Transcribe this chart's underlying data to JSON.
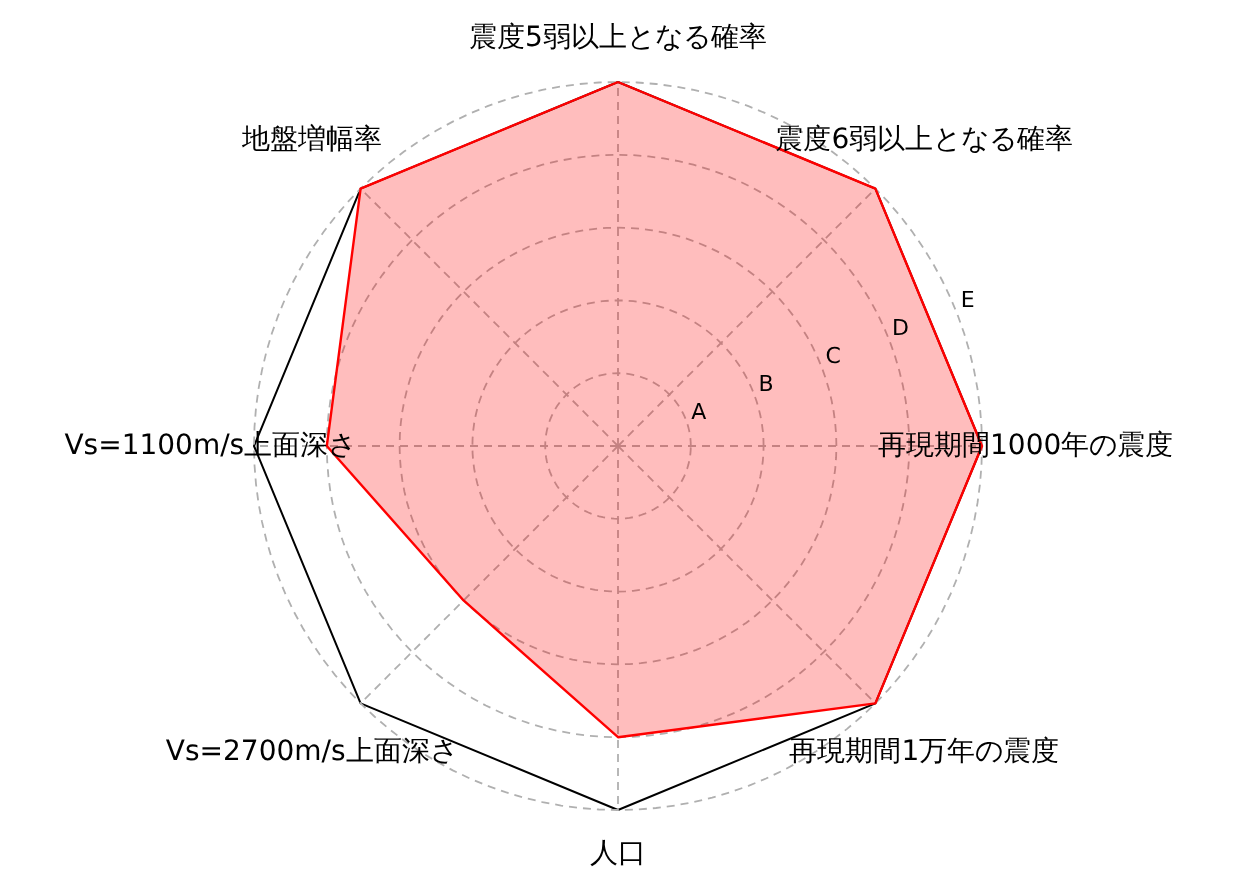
{
  "chart_data": {
    "type": "radar",
    "categories": [
      "震度5弱以上となる確率",
      "震度6弱以上となる確率",
      "再現期間1000年の震度",
      "再現期間1万年の震度",
      "人口",
      "Vs=2700m/s上面深さ",
      "Vs=1100m/s上面深さ",
      "地盤増幅率"
    ],
    "series": [
      {
        "color": "#ff0000",
        "values": [
          5,
          5,
          5,
          5,
          4,
          3,
          4,
          5
        ]
      }
    ],
    "ylim": [
      0,
      5
    ],
    "yticks": [
      {
        "value": 1,
        "label": "A"
      },
      {
        "value": 2,
        "label": "B"
      },
      {
        "value": 3,
        "label": "C"
      },
      {
        "value": 4,
        "label": "D"
      },
      {
        "value": 5,
        "label": "E"
      }
    ],
    "grid": true
  }
}
